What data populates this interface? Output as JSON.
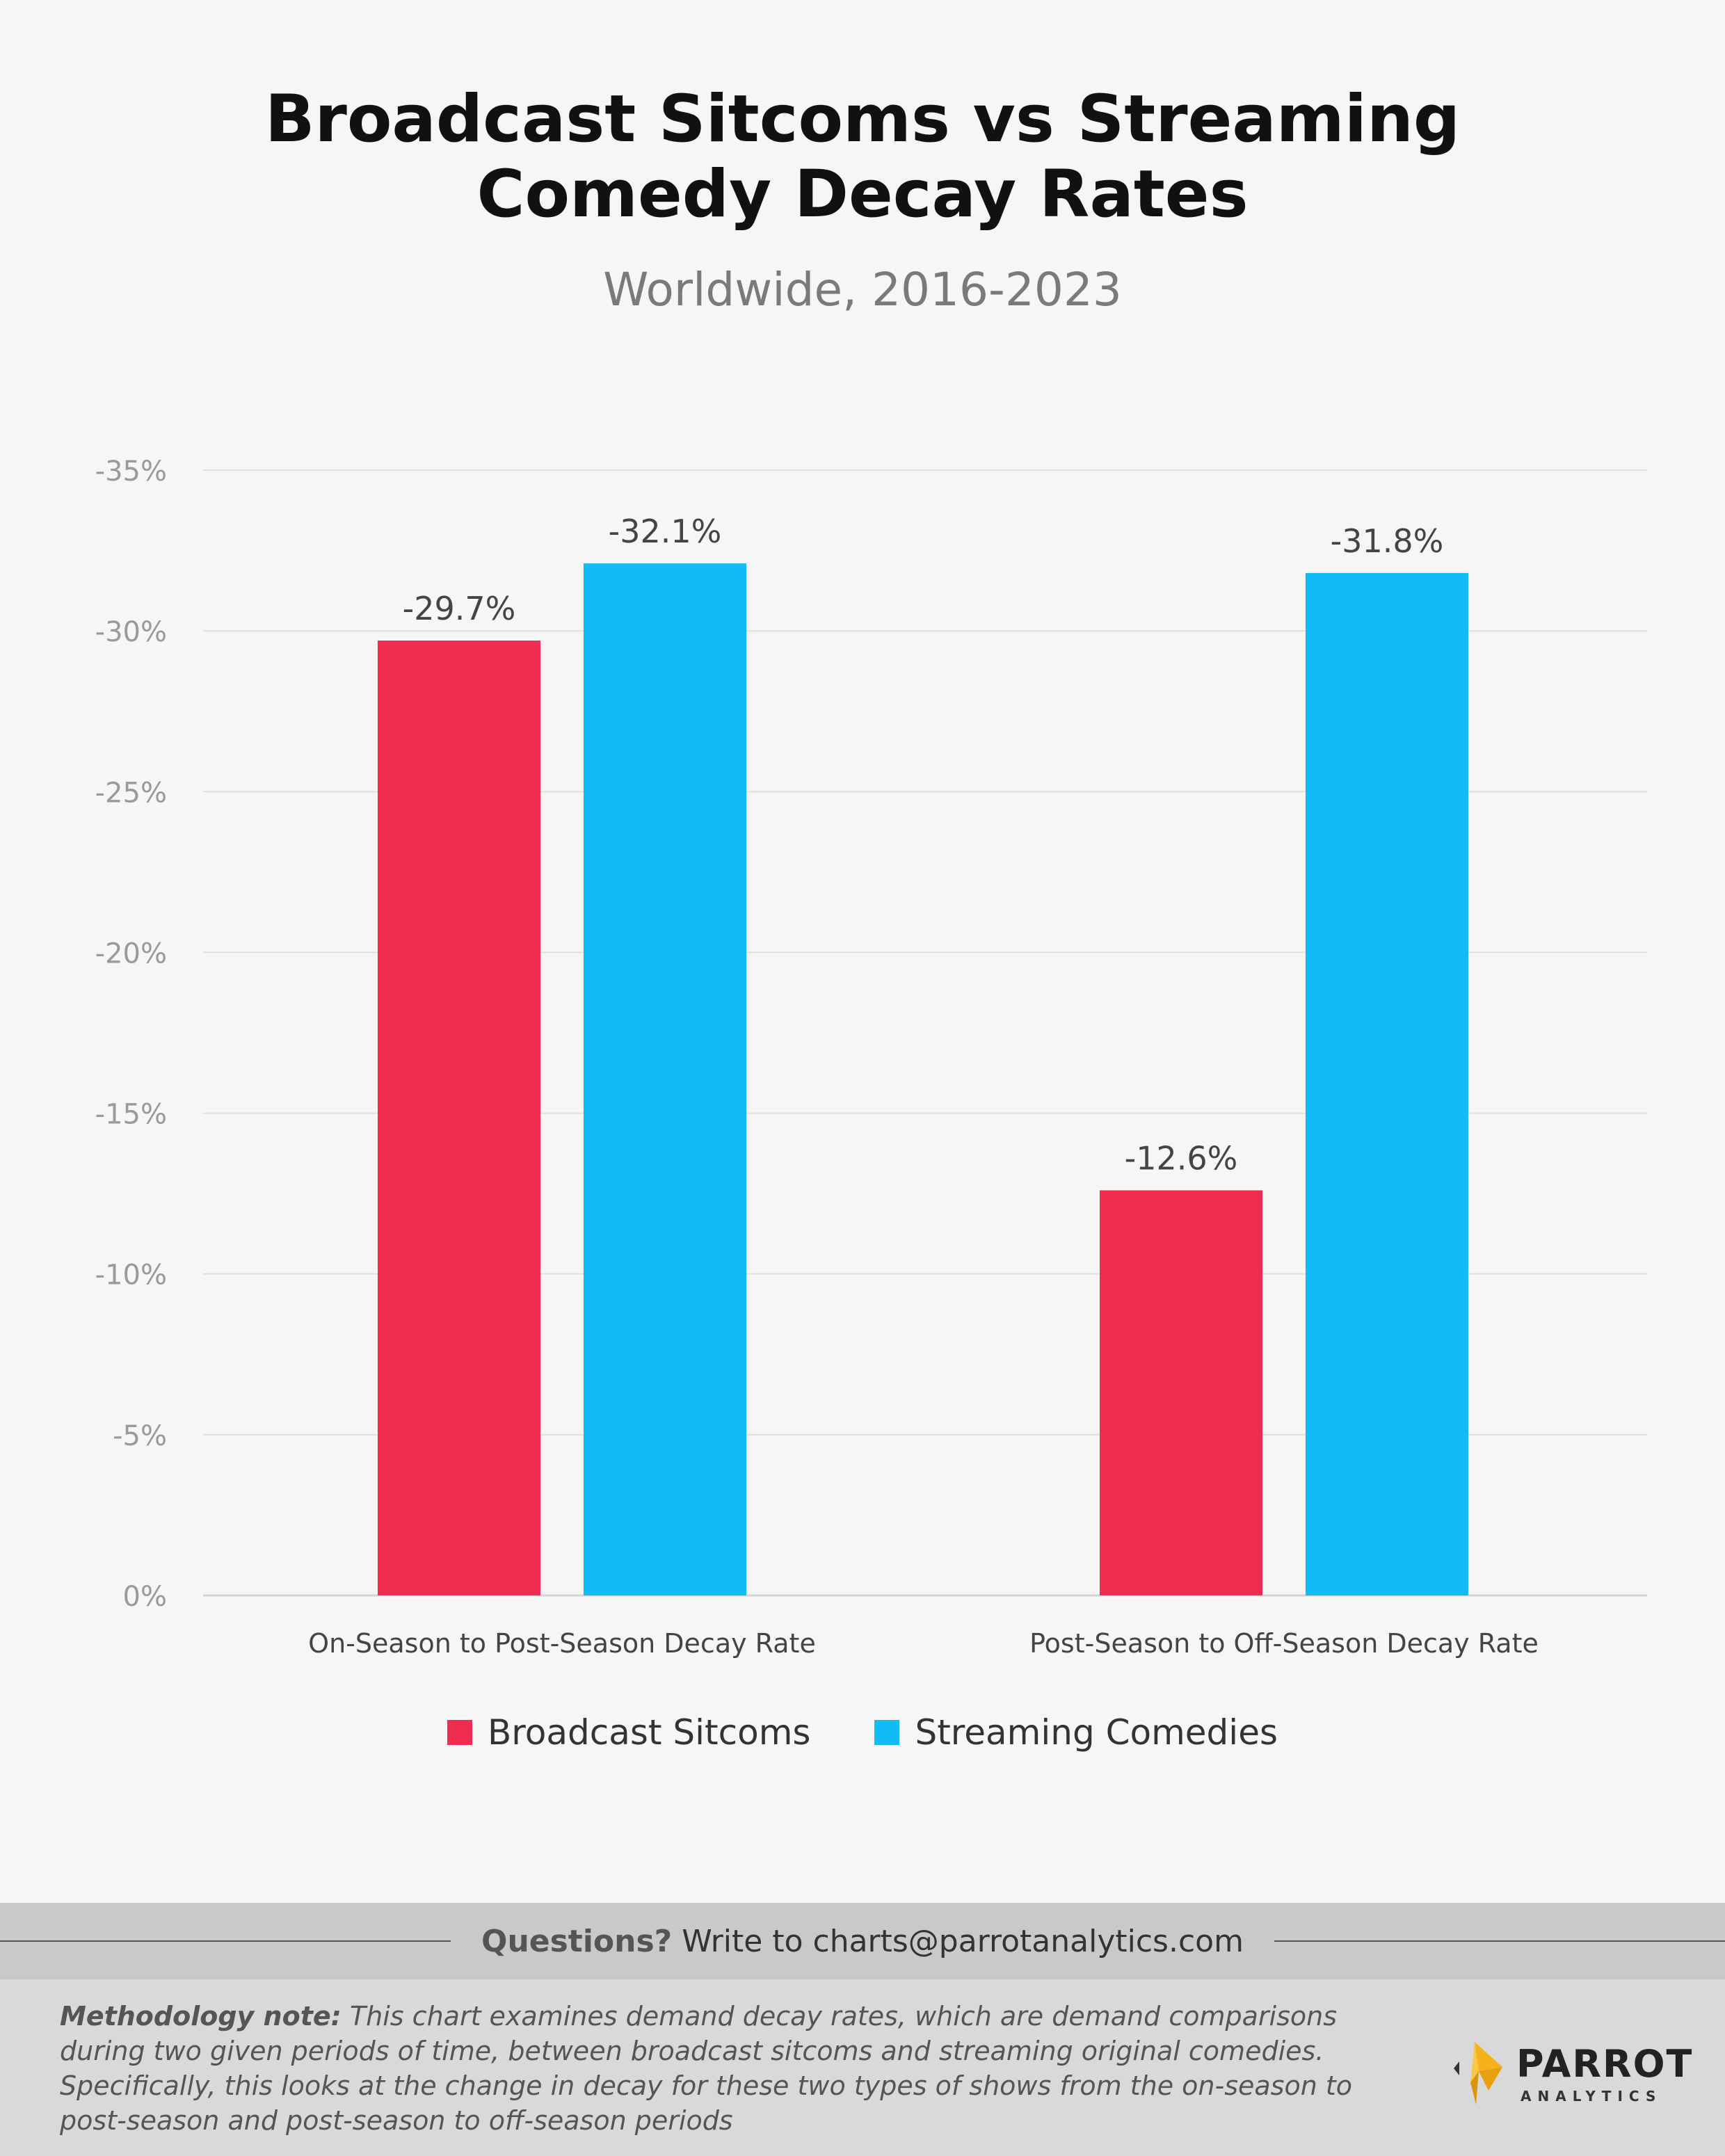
{
  "chart_data": {
    "type": "bar",
    "title": [
      "Broadcast Sitcoms vs Streaming",
      "Comedy Decay Rates"
    ],
    "subtitle": "Worldwide, 2016-2023",
    "categories": [
      "On-Season to Post-Season Decay Rate",
      "Post-Season to Off-Season Decay Rate"
    ],
    "series": [
      {
        "name": "Broadcast Sitcoms",
        "values": [
          -29.7,
          -12.6
        ],
        "labels": [
          "-29.7%",
          "-12.6%"
        ],
        "color": "#f02d50"
      },
      {
        "name": "Streaming Comedies",
        "values": [
          -32.1,
          -31.8
        ],
        "labels": [
          "-32.1%",
          "-31.8%"
        ],
        "color": "#12bbf5"
      }
    ],
    "yticks": [
      0,
      -5,
      -10,
      -15,
      -20,
      -25,
      -30,
      -35
    ],
    "ytick_labels": [
      "0%",
      "-5%",
      "-10%",
      "-15%",
      "-20%",
      "-25%",
      "-30%",
      "-35%"
    ],
    "ylim": [
      0,
      -35
    ],
    "y_axis_inverted": true,
    "grid": true,
    "legend_position": "bottom-center"
  },
  "footer": {
    "questions_label": "Questions?",
    "questions_text": "Write to charts@parrotanalytics.com",
    "methodology_label": "Methodology note:",
    "methodology_text": "This chart examines demand decay rates, which are demand comparisons during two given periods of time, between broadcast sitcoms and streaming original comedies. Specifically, this looks at the change in decay for these two types of shows from the on-season to post-season and post-season to off-season periods",
    "logo_word": "PARROT",
    "logo_sub": "ANALYTICS",
    "logo_colors": {
      "gold": "#f5b21b",
      "dark": "#333333"
    }
  }
}
